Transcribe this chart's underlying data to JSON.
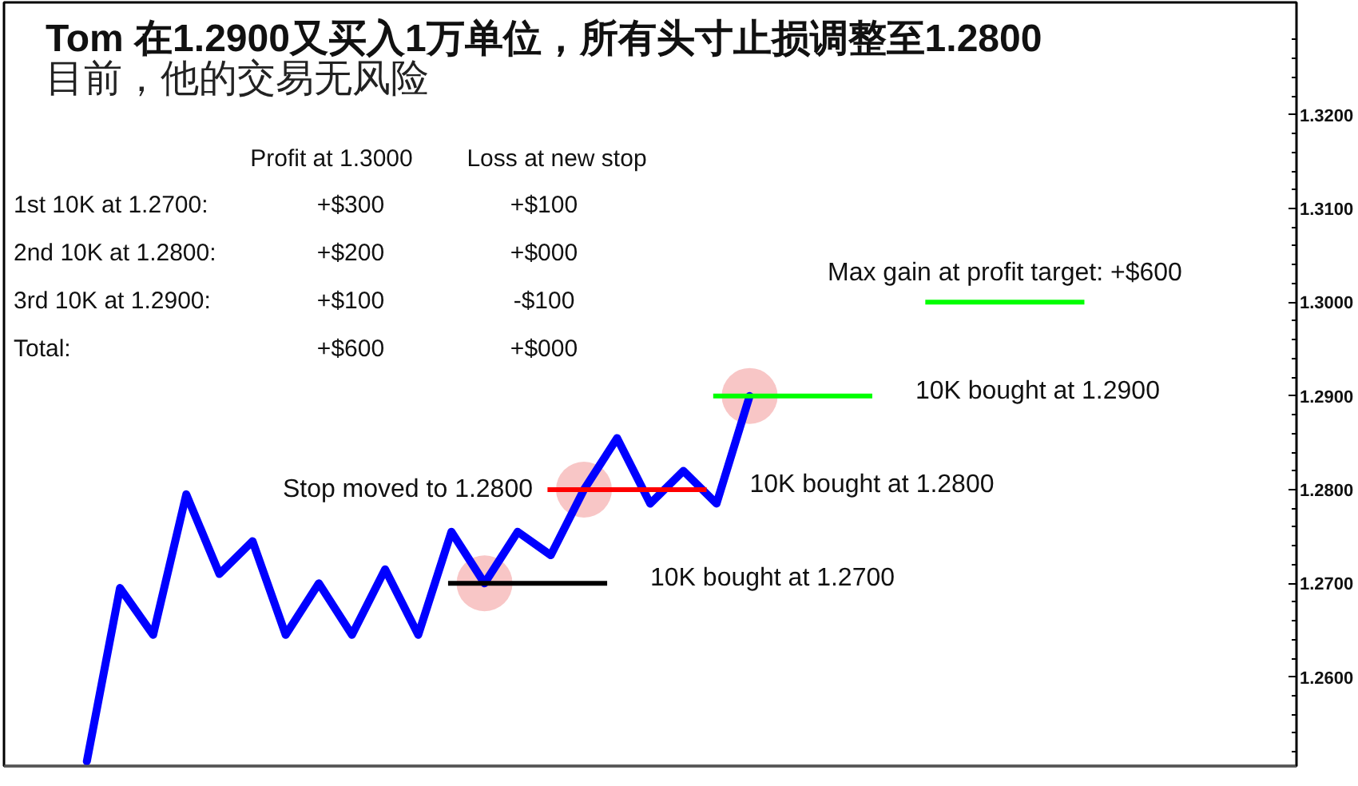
{
  "chart_data": {
    "type": "line",
    "title": "Tom 在1.2900又买入1万单位，所有头寸止损调整至1.2800",
    "subtitle": "目前，他的交易无风险",
    "categories": [
      null,
      null,
      null,
      null,
      null,
      null,
      null,
      null,
      null,
      null,
      null,
      null,
      null,
      null,
      null,
      null,
      null,
      null,
      null,
      null,
      null,
      null,
      null,
      null,
      null,
      null,
      null,
      null,
      null,
      null,
      null,
      null,
      null,
      null,
      null,
      null,
      null,
      null,
      null
    ],
    "series": [
      {
        "color": "#0000ff",
        "values": [
          null,
          null,
          1.251,
          1.2695,
          1.2645,
          1.2795,
          1.271,
          1.2745,
          1.2645,
          1.27,
          1.2645,
          1.2715,
          1.2645,
          1.2755,
          1.27,
          1.2755,
          1.273,
          1.28,
          1.2855,
          1.2785,
          1.282,
          1.2785,
          1.29,
          null,
          null,
          null,
          null,
          null,
          null,
          null,
          null,
          null,
          null,
          null,
          null,
          null,
          null,
          null,
          null
        ]
      },
      {
        "type": "scatter",
        "marker": "circle",
        "color": "#f8c6c6",
        "values": [
          null,
          null,
          null,
          null,
          null,
          null,
          null,
          null,
          null,
          null,
          null,
          null,
          null,
          null,
          1.27,
          null,
          null,
          1.28,
          null,
          null,
          null,
          null,
          1.29,
          null,
          null,
          null,
          null,
          null,
          null,
          null,
          null,
          null,
          null,
          null,
          null,
          null,
          null,
          null,
          null
        ]
      }
    ],
    "ylim": [
      1.2505,
      1.332
    ],
    "yticks": [
      {
        "value": 1.26,
        "label": "1.2600"
      },
      {
        "value": 1.27,
        "label": "1.2700"
      },
      {
        "value": 1.28,
        "label": "1.2800"
      },
      {
        "value": 1.29,
        "label": "1.2900"
      },
      {
        "value": 1.3,
        "label": "1.3000"
      },
      {
        "value": 1.31,
        "label": "1.3100"
      },
      {
        "value": 1.32,
        "label": "1.3200"
      }
    ],
    "tick_labels": "y",
    "ref_lines": [
      {
        "axis": "y",
        "value": 1.27,
        "label": "10K bought at 1.2700",
        "color": "#000000"
      },
      {
        "axis": "y",
        "value": 1.28,
        "label": "10K bought at 1.2800",
        "color": "#ff0000"
      },
      {
        "axis": "y",
        "value": 1.29,
        "label": "10K bought at 1.2900",
        "color": "#00ff00"
      },
      {
        "axis": "y",
        "value": 1.3,
        "label": "Max gain at profit target: +$600",
        "color": "#00ff00"
      }
    ],
    "annotations": [
      "Profit at 1.3000",
      "Loss at new stop",
      "1st 10K at 1.2700:",
      "+$300",
      "+$100",
      "2nd 10K at 1.2800:",
      "+$200",
      "+$000",
      "3rd 10K at 1.2900:",
      "+$100",
      "-$100",
      "Total:",
      "+$600",
      "+$000",
      "Stop moved to 1.2800"
    ]
  }
}
